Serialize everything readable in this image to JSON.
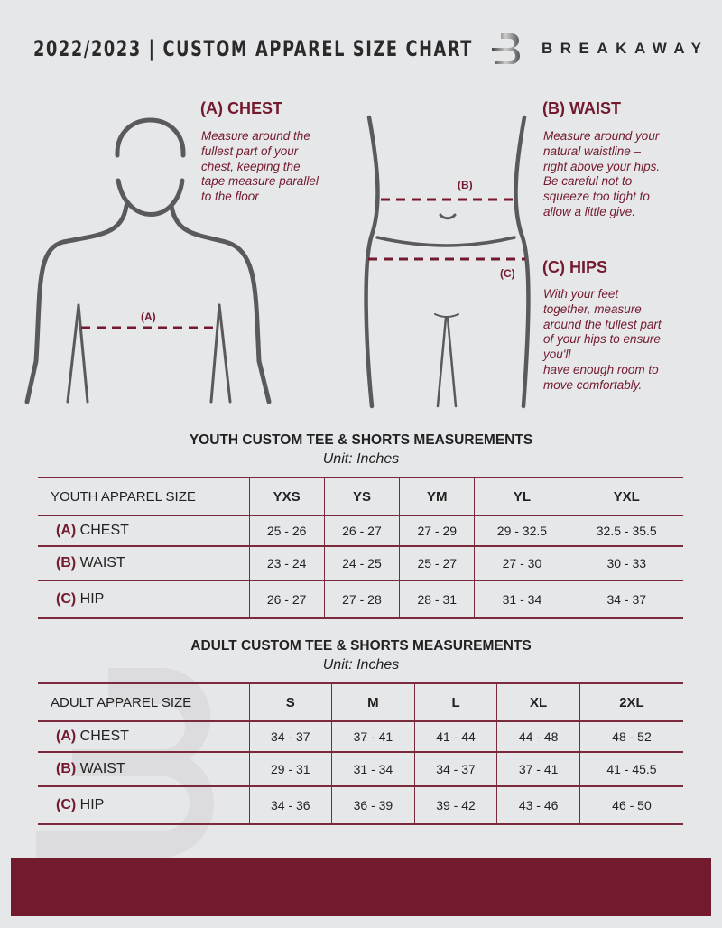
{
  "header": {
    "title": "2022/2023  |  CUSTOM APPAREL SIZE CHART",
    "brand": "BREAKAWAY",
    "logo_letter": "B"
  },
  "colors": {
    "accent": "#731a2e",
    "background": "#e6e7e9",
    "figure": "#5a5a5c"
  },
  "guide": {
    "chest": {
      "title": "(A) CHEST",
      "marker": "(A)",
      "lines": [
        "Measure around the",
        "fullest part of your",
        "chest, keeping the",
        "tape measure parallel",
        "to the floor"
      ]
    },
    "waist": {
      "title": "(B) WAIST",
      "marker": "(B)",
      "lines": [
        "Measure around your",
        "natural waistline –",
        "right above your hips.",
        "Be careful not to",
        "squeeze too tight to",
        "allow a little give."
      ]
    },
    "hips": {
      "title": "(C) HIPS",
      "marker": "(C)",
      "lines": [
        "With your feet",
        "together, measure",
        "around the fullest part",
        "of your hips to ensure",
        "you'll",
        "have enough room to",
        "move comfortably."
      ]
    }
  },
  "youth": {
    "title": "YOUTH CUSTOM TEE & SHORTS MEASUREMENTS",
    "unit": "Unit: Inches",
    "header": "YOUTH APPAREL SIZE",
    "sizes": [
      "YXS",
      "YS",
      "YM",
      "YL",
      "YXL"
    ],
    "rows": [
      {
        "mark": "(A)",
        "label": "CHEST",
        "values": [
          "25 - 26",
          "26 - 27",
          "27 - 29",
          "29 - 32.5",
          "32.5 - 35.5"
        ]
      },
      {
        "mark": "(B)",
        "label": "WAIST",
        "values": [
          "23 - 24",
          "24 - 25",
          "25 - 27",
          "27 - 30",
          "30 - 33"
        ]
      },
      {
        "mark": "(C)",
        "label": "HIP",
        "values": [
          "26 - 27",
          "27 - 28",
          "28 - 31",
          "31 - 34",
          "34 - 37"
        ]
      }
    ]
  },
  "adult": {
    "title": "ADULT CUSTOM TEE & SHORTS MEASUREMENTS",
    "unit": "Unit: Inches",
    "header": "ADULT APPAREL SIZE",
    "sizes": [
      "S",
      "M",
      "L",
      "XL",
      "2XL"
    ],
    "rows": [
      {
        "mark": "(A)",
        "label": "CHEST",
        "values": [
          "34 - 37",
          "37 - 41",
          "41 - 44",
          "44 - 48",
          "48 - 52"
        ]
      },
      {
        "mark": "(B)",
        "label": "WAIST",
        "values": [
          "29 - 31",
          "31 - 34",
          "34 - 37",
          "37 - 41",
          "41 - 45.5"
        ]
      },
      {
        "mark": "(C)",
        "label": "HIP",
        "values": [
          "34 - 36",
          "36 - 39",
          "39 - 42",
          "43 - 46",
          "46 - 50"
        ]
      }
    ]
  }
}
